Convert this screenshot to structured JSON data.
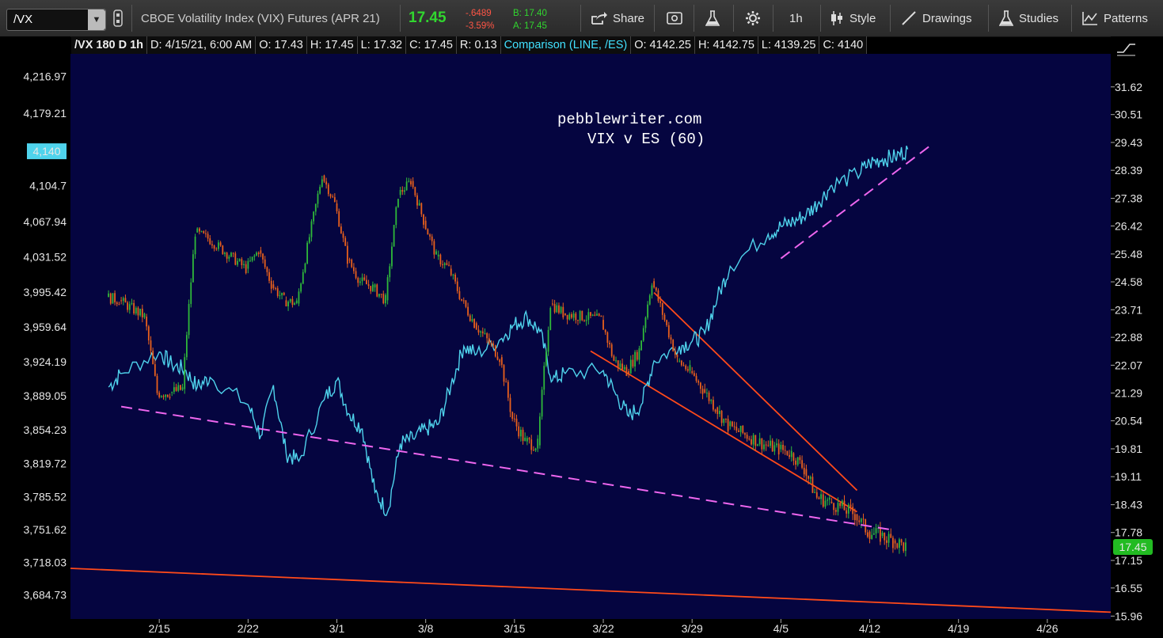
{
  "toolbar": {
    "symbol": "/VX",
    "description": "CBOE Volatility Index (VIX) Futures (APR 21)",
    "last": "17.45",
    "change": "-.6489",
    "change_pct": "-3.59%",
    "bid": "B: 17.40",
    "ask": "A: 17.45",
    "share": "Share",
    "timeframe": "1h",
    "style": "Style",
    "drawings": "Drawings",
    "studies": "Studies",
    "patterns": "Patterns"
  },
  "infobar": {
    "chart_spec": "/VX 180 D 1h",
    "date": "D: 4/15/21, 6:00 AM",
    "open": "O: 17.43",
    "high": "H: 17.45",
    "low": "L: 17.32",
    "close": "C: 17.45",
    "range": "R: 0.13",
    "comparison": "Comparison (LINE, /ES)",
    "cmp_open": "O: 4142.25",
    "cmp_high": "H: 4142.75",
    "cmp_low": "L: 4139.25",
    "cmp_close": "C: 4140"
  },
  "annotation": {
    "line1": "pebblewriter.com",
    "line2": "VIX v ES (60)"
  },
  "colors": {
    "background": "#050540",
    "es_line": "#4fd3ec",
    "candle_up": "#2fb83a",
    "candle_down": "#e8601c",
    "trendline_dashed": "#ee66ee",
    "trendline_solid": "#ff4a1a",
    "price_badge": "#22bb22"
  },
  "chart_data": {
    "type": "line",
    "title": "VIX v ES (60)",
    "x_tick_labels": [
      "2/15",
      "2/22",
      "3/1",
      "3/8",
      "3/15",
      "3/22",
      "3/29",
      "4/5",
      "4/12",
      "4/19",
      "4/26"
    ],
    "left_axis": {
      "series": "/ES",
      "ticks": [
        "4,216.97",
        "4,179.21",
        "4,140",
        "4,104.7",
        "4,067.94",
        "4,031.52",
        "3,995.42",
        "3,959.64",
        "3,924.19",
        "3,889.05",
        "3,854.23",
        "3,819.72",
        "3,785.52",
        "3,751.62",
        "3,718.03",
        "3,684.73"
      ],
      "ylim": [
        3660,
        4240
      ],
      "last_marker": "4,140"
    },
    "right_axis": {
      "series": "/VX",
      "ticks": [
        "31.62",
        "30.51",
        "29.43",
        "28.39",
        "27.38",
        "26.42",
        "25.48",
        "24.58",
        "23.71",
        "22.88",
        "22.07",
        "21.29",
        "20.54",
        "19.81",
        "19.11",
        "18.43",
        "17.78",
        "17.15",
        "16.55",
        "15.96"
      ],
      "scale": "log",
      "ylim": [
        15.9,
        33.0
      ],
      "last_marker": "17.45"
    },
    "series": [
      {
        "name": "/ES",
        "style": "line",
        "points": [
          [
            "2/11",
            3898
          ],
          [
            "2/12",
            3912
          ],
          [
            "2/15",
            3934
          ],
          [
            "2/16",
            3921
          ],
          [
            "2/17",
            3916
          ],
          [
            "2/18",
            3898
          ],
          [
            "2/19",
            3908
          ],
          [
            "2/22",
            3880
          ],
          [
            "2/23",
            3848
          ],
          [
            "2/24",
            3900
          ],
          [
            "2/25",
            3830
          ],
          [
            "2/26",
            3822
          ],
          [
            "2/28",
            3885
          ],
          [
            "3/1",
            3905
          ],
          [
            "3/2",
            3870
          ],
          [
            "3/3",
            3855
          ],
          [
            "3/4",
            3790
          ],
          [
            "3/5",
            3770
          ],
          [
            "3/6",
            3840
          ],
          [
            "3/7",
            3845
          ],
          [
            "3/8",
            3855
          ],
          [
            "3/9",
            3860
          ],
          [
            "3/10",
            3900
          ],
          [
            "3/11",
            3940
          ],
          [
            "3/12",
            3932
          ],
          [
            "3/14",
            3948
          ],
          [
            "3/15",
            3962
          ],
          [
            "3/16",
            3970
          ],
          [
            "3/17",
            3955
          ],
          [
            "3/18",
            3905
          ],
          [
            "3/19",
            3912
          ],
          [
            "3/22",
            3915
          ],
          [
            "3/23",
            3890
          ],
          [
            "3/24",
            3868
          ],
          [
            "3/25",
            3880
          ],
          [
            "3/26",
            3925
          ],
          [
            "3/28",
            3940
          ],
          [
            "3/29",
            3945
          ],
          [
            "3/30",
            3953
          ],
          [
            "3/31",
            3990
          ],
          [
            "4/1",
            4022
          ],
          [
            "4/4",
            4055
          ],
          [
            "4/5",
            4063
          ],
          [
            "4/6",
            4068
          ],
          [
            "4/7",
            4075
          ],
          [
            "4/8",
            4088
          ],
          [
            "4/9",
            4105
          ],
          [
            "4/11",
            4116
          ],
          [
            "4/12",
            4128
          ],
          [
            "4/13",
            4132
          ],
          [
            "4/14",
            4134
          ],
          [
            "4/15",
            4142
          ]
        ]
      },
      {
        "name": "/VX",
        "style": "candles",
        "points": [
          [
            "2/11",
            24.1
          ],
          [
            "2/12",
            24.0
          ],
          [
            "2/14",
            23.5
          ],
          [
            "2/15",
            21.3
          ],
          [
            "2/16",
            21.3
          ],
          [
            "2/17",
            21.4
          ],
          [
            "2/18",
            26.2
          ],
          [
            "2/19",
            26.0
          ],
          [
            "2/22",
            25.0
          ],
          [
            "2/23",
            25.6
          ],
          [
            "2/24",
            24.5
          ],
          [
            "2/25",
            24.0
          ],
          [
            "2/26",
            23.9
          ],
          [
            "2/28",
            28.2
          ],
          [
            "3/1",
            27.2
          ],
          [
            "3/2",
            25.3
          ],
          [
            "3/3",
            24.6
          ],
          [
            "3/4",
            24.4
          ],
          [
            "3/5",
            24.0
          ],
          [
            "3/6",
            27.5
          ],
          [
            "3/7",
            28.0
          ],
          [
            "3/8",
            26.6
          ],
          [
            "3/9",
            25.4
          ],
          [
            "3/10",
            25.0
          ],
          [
            "3/11",
            24.0
          ],
          [
            "3/12",
            23.3
          ],
          [
            "3/14",
            22.3
          ],
          [
            "3/15",
            20.6
          ],
          [
            "3/16",
            20.0
          ],
          [
            "3/17",
            19.9
          ],
          [
            "3/18",
            23.9
          ],
          [
            "3/19",
            23.6
          ],
          [
            "3/22",
            23.4
          ],
          [
            "3/23",
            22.2
          ],
          [
            "3/24",
            21.9
          ],
          [
            "3/25",
            22.5
          ],
          [
            "3/26",
            24.6
          ],
          [
            "3/28",
            22.2
          ],
          [
            "3/29",
            21.9
          ],
          [
            "3/30",
            21.4
          ],
          [
            "3/31",
            20.9
          ],
          [
            "4/1",
            20.4
          ],
          [
            "4/4",
            19.9
          ],
          [
            "4/5",
            19.8
          ],
          [
            "4/6",
            19.7
          ],
          [
            "4/7",
            19.3
          ],
          [
            "4/8",
            18.6
          ],
          [
            "4/9",
            18.5
          ],
          [
            "4/11",
            18.2
          ],
          [
            "4/12",
            17.8
          ],
          [
            "4/13",
            17.7
          ],
          [
            "4/14",
            17.6
          ],
          [
            "4/15",
            17.45
          ]
        ]
      }
    ],
    "trendlines": [
      {
        "style": "dashed",
        "color": "#ee66ee",
        "from": [
          "2/12",
          3878
        ],
        "to": [
          "4/14",
          3751
        ]
      },
      {
        "style": "dashed",
        "color": "#ee66ee",
        "from": [
          "4/5",
          4030
        ],
        "to": [
          "4/17",
          4148
        ]
      },
      {
        "style": "solid",
        "color": "#ff4a1a",
        "from": [
          "3/21",
          3935
        ],
        "to": [
          "4/11",
          3770
        ]
      },
      {
        "style": "solid",
        "color": "#ff4a1a",
        "from": [
          "3/26",
          3995
        ],
        "to": [
          "4/11",
          3792
        ]
      },
      {
        "style": "solid",
        "color": "#ff4a1a",
        "from": [
          "2/8",
          3712
        ],
        "to": [
          "5/1",
          3667
        ]
      }
    ]
  }
}
